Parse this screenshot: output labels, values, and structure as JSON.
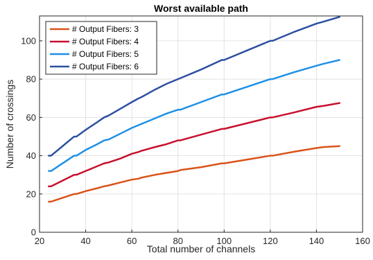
{
  "chart_data": {
    "type": "line",
    "title": "Worst available path",
    "xlabel": "Total number of channels",
    "ylabel": "Number of crossings",
    "xlim": [
      20,
      160
    ],
    "ylim": [
      0,
      113
    ],
    "xticks": [
      20,
      40,
      60,
      80,
      100,
      120,
      140,
      160
    ],
    "yticks": [
      0,
      20,
      40,
      60,
      80,
      100
    ],
    "grid": true,
    "legend_position": "top-left",
    "series": [
      {
        "name": "# Output Fibers: 3",
        "color": "#D95319",
        "x": [
          24,
          25,
          30,
          35,
          36,
          40,
          45,
          48,
          50,
          55,
          60,
          63,
          64,
          70,
          75,
          80,
          81,
          90,
          99,
          100,
          110,
          120,
          121,
          130,
          140,
          143,
          150
        ],
        "y": [
          16,
          16,
          18,
          20,
          20,
          21.5,
          23,
          24,
          24.5,
          26,
          27.5,
          28,
          28.5,
          30,
          31,
          32,
          32.5,
          34,
          36,
          36,
          38,
          40,
          40,
          42,
          44,
          44.5,
          45
        ]
      },
      {
        "name": "# Output Fibers: 4",
        "color": "#C8102E",
        "x": [
          24,
          25,
          30,
          35,
          36,
          40,
          45,
          48,
          50,
          55,
          60,
          63,
          64,
          70,
          75,
          80,
          81,
          90,
          99,
          100,
          110,
          120,
          121,
          130,
          140,
          143,
          150
        ],
        "y": [
          24,
          24,
          27,
          30,
          30,
          32,
          34.5,
          36,
          36.5,
          38.5,
          41,
          42,
          42.5,
          44.5,
          46,
          48,
          48,
          51,
          54,
          54,
          57,
          60,
          60,
          62.5,
          65.5,
          66,
          67.5
        ]
      },
      {
        "name": "# Output Fibers: 5",
        "color": "#1E90E6",
        "x": [
          24,
          25,
          30,
          35,
          36,
          40,
          45,
          48,
          50,
          55,
          60,
          63,
          64,
          70,
          75,
          80,
          81,
          90,
          99,
          100,
          110,
          120,
          121,
          130,
          140,
          143,
          150
        ],
        "y": [
          32,
          32,
          36,
          40,
          40,
          43,
          46,
          48,
          48.5,
          51.5,
          54.5,
          56,
          56.5,
          59.5,
          62,
          64,
          64,
          68,
          72,
          72,
          76,
          80,
          80,
          83.5,
          87,
          88,
          90
        ]
      },
      {
        "name": "# Output Fibers: 6",
        "color": "#2D4FA1",
        "x": [
          24,
          25,
          30,
          35,
          36,
          40,
          45,
          48,
          50,
          55,
          60,
          63,
          64,
          70,
          75,
          80,
          81,
          90,
          99,
          100,
          110,
          120,
          121,
          130,
          140,
          143,
          150
        ],
        "y": [
          40,
          40,
          45,
          50,
          50,
          53.5,
          57.5,
          60,
          61,
          64.5,
          68,
          70,
          70.5,
          74.5,
          77.5,
          80,
          80.5,
          85,
          90,
          90,
          95,
          100,
          100,
          104.5,
          109,
          110,
          112.5
        ]
      }
    ]
  }
}
